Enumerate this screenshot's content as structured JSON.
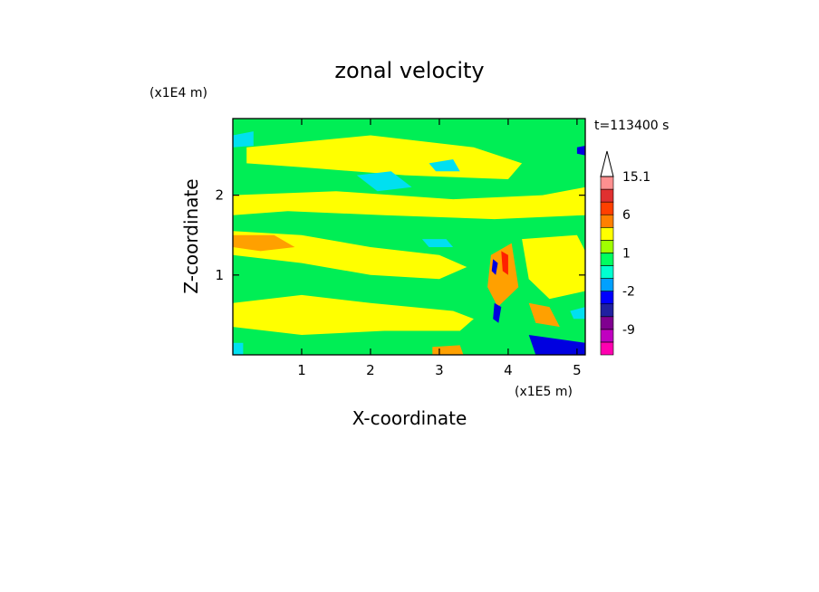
{
  "chart_data": {
    "type": "heatmap",
    "title": "zonal velocity",
    "xlabel": "X-coordinate",
    "ylabel": "Z-coordinate",
    "x_scale_label": "(x1E5 m)",
    "y_scale_label": "(x1E4 m)",
    "time_label": "t=113400 s",
    "xlim": [
      0,
      5.12
    ],
    "ylim": [
      0,
      2.96
    ],
    "x_ticks": [
      1,
      2,
      3,
      4,
      5
    ],
    "y_ticks": [
      1,
      2
    ],
    "colorbar": {
      "levels": [
        -15,
        -12,
        -9,
        -6,
        -4,
        -2,
        -1,
        0,
        1,
        2,
        4,
        6,
        9,
        12,
        15.1
      ],
      "colors": [
        "#ff00b0",
        "#c000c0",
        "#800090",
        "#2020a0",
        "#0000ff",
        "#00a0ff",
        "#00ffd0",
        "#00ff60",
        "#a0ff00",
        "#ffff00",
        "#ff8000",
        "#ff4000",
        "#e03030",
        "#ff9090"
      ],
      "tick_labels": [
        "15.1",
        "6",
        "1",
        "-2",
        "-9"
      ],
      "tick_values": [
        15.1,
        6,
        1,
        -2,
        -9
      ],
      "extend_max": true
    },
    "field_palette": {
      "green": "#00ee55",
      "yellow": "#ffff00",
      "cyan": "#00e0f0",
      "orange": "#ffa000",
      "red": "#ff2000",
      "blue": "#0000e0"
    },
    "regions": [
      {
        "color": "yellow",
        "points": [
          [
            0.2,
            2.6
          ],
          [
            2.0,
            2.75
          ],
          [
            3.5,
            2.6
          ],
          [
            4.2,
            2.4
          ],
          [
            4.0,
            2.2
          ],
          [
            2.5,
            2.25
          ],
          [
            1.0,
            2.35
          ],
          [
            0.2,
            2.4
          ]
        ]
      },
      {
        "color": "yellow",
        "points": [
          [
            0.0,
            2.0
          ],
          [
            1.5,
            2.05
          ],
          [
            3.2,
            1.95
          ],
          [
            4.5,
            2.0
          ],
          [
            5.12,
            2.1
          ],
          [
            5.12,
            1.75
          ],
          [
            3.8,
            1.7
          ],
          [
            2.2,
            1.75
          ],
          [
            0.8,
            1.8
          ],
          [
            0.0,
            1.75
          ]
        ]
      },
      {
        "color": "yellow",
        "points": [
          [
            0.0,
            1.55
          ],
          [
            1.0,
            1.5
          ],
          [
            2.0,
            1.35
          ],
          [
            3.0,
            1.25
          ],
          [
            3.4,
            1.1
          ],
          [
            3.0,
            0.95
          ],
          [
            2.0,
            1.0
          ],
          [
            1.0,
            1.15
          ],
          [
            0.0,
            1.25
          ]
        ]
      },
      {
        "color": "yellow",
        "points": [
          [
            0.0,
            0.65
          ],
          [
            1.0,
            0.75
          ],
          [
            2.0,
            0.65
          ],
          [
            3.2,
            0.55
          ],
          [
            3.5,
            0.45
          ],
          [
            3.3,
            0.3
          ],
          [
            2.2,
            0.3
          ],
          [
            1.0,
            0.25
          ],
          [
            0.0,
            0.35
          ]
        ]
      },
      {
        "color": "yellow",
        "points": [
          [
            4.2,
            1.45
          ],
          [
            5.0,
            1.5
          ],
          [
            5.12,
            1.3
          ],
          [
            5.12,
            0.8
          ],
          [
            4.6,
            0.7
          ],
          [
            4.3,
            0.95
          ]
        ]
      },
      {
        "color": "cyan",
        "points": [
          [
            1.8,
            2.25
          ],
          [
            2.3,
            2.3
          ],
          [
            2.6,
            2.1
          ],
          [
            2.1,
            2.05
          ]
        ]
      },
      {
        "color": "cyan",
        "points": [
          [
            2.85,
            2.4
          ],
          [
            3.2,
            2.45
          ],
          [
            3.3,
            2.3
          ],
          [
            2.95,
            2.3
          ]
        ]
      },
      {
        "color": "cyan",
        "points": [
          [
            2.75,
            1.45
          ],
          [
            3.1,
            1.45
          ],
          [
            3.2,
            1.35
          ],
          [
            2.85,
            1.35
          ]
        ]
      },
      {
        "color": "cyan",
        "points": [
          [
            4.9,
            0.55
          ],
          [
            5.12,
            0.6
          ],
          [
            5.12,
            0.45
          ],
          [
            4.95,
            0.45
          ]
        ]
      },
      {
        "color": "cyan",
        "points": [
          [
            0.0,
            2.75
          ],
          [
            0.3,
            2.8
          ],
          [
            0.3,
            2.62
          ],
          [
            0.0,
            2.6
          ]
        ]
      },
      {
        "color": "cyan",
        "points": [
          [
            0.0,
            0.15
          ],
          [
            0.15,
            0.15
          ],
          [
            0.15,
            0.0
          ],
          [
            0.0,
            0.0
          ]
        ]
      },
      {
        "color": "orange",
        "points": [
          [
            0.0,
            1.5
          ],
          [
            0.6,
            1.5
          ],
          [
            0.9,
            1.35
          ],
          [
            0.4,
            1.3
          ],
          [
            0.0,
            1.35
          ]
        ]
      },
      {
        "color": "orange",
        "points": [
          [
            3.75,
            1.25
          ],
          [
            4.05,
            1.4
          ],
          [
            4.15,
            0.85
          ],
          [
            3.85,
            0.6
          ],
          [
            3.7,
            0.85
          ]
        ]
      },
      {
        "color": "orange",
        "points": [
          [
            4.3,
            0.65
          ],
          [
            4.6,
            0.6
          ],
          [
            4.75,
            0.35
          ],
          [
            4.4,
            0.4
          ]
        ]
      },
      {
        "color": "orange",
        "points": [
          [
            2.9,
            0.1
          ],
          [
            3.3,
            0.12
          ],
          [
            3.35,
            0.0
          ],
          [
            2.9,
            0.0
          ]
        ]
      },
      {
        "color": "red",
        "points": [
          [
            3.9,
            1.3
          ],
          [
            4.0,
            1.25
          ],
          [
            4.0,
            1.0
          ],
          [
            3.92,
            1.05
          ]
        ]
      },
      {
        "color": "blue",
        "points": [
          [
            5.0,
            2.6
          ],
          [
            5.12,
            2.62
          ],
          [
            5.12,
            2.5
          ],
          [
            5.0,
            2.52
          ]
        ]
      },
      {
        "color": "blue",
        "points": [
          [
            3.78,
            1.2
          ],
          [
            3.85,
            1.15
          ],
          [
            3.82,
            1.0
          ],
          [
            3.76,
            1.05
          ]
        ]
      },
      {
        "color": "blue",
        "points": [
          [
            3.8,
            0.65
          ],
          [
            3.9,
            0.6
          ],
          [
            3.86,
            0.4
          ],
          [
            3.78,
            0.45
          ]
        ]
      },
      {
        "color": "blue",
        "points": [
          [
            4.3,
            0.25
          ],
          [
            5.12,
            0.15
          ],
          [
            5.12,
            0.0
          ],
          [
            4.4,
            0.0
          ]
        ]
      }
    ]
  }
}
